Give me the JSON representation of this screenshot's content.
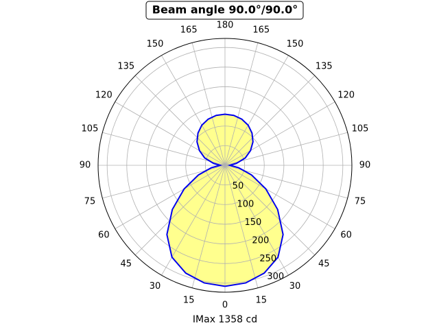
{
  "chart_data": {
    "type": "polar",
    "title": "Beam angle 90.0°/90.0°",
    "xlabel": "IMax 1358 cd",
    "theta_zero": "bottom",
    "x": [
      0,
      10,
      20,
      30,
      40,
      50,
      60,
      70,
      80,
      90,
      100,
      110,
      120,
      130,
      140,
      150,
      160,
      170,
      180,
      190,
      200,
      210,
      220,
      230,
      240,
      250,
      260,
      270,
      280,
      290,
      300,
      310,
      320,
      330,
      340,
      350,
      360
    ],
    "series": [
      {
        "color": "#0000ee",
        "fill": "#ffff88",
        "values": [
          308,
          304,
          292,
          270,
          230,
          175,
          120,
          72,
          35,
          12,
          30,
          55,
          75,
          93,
          107,
          118,
          125,
          129,
          130,
          129,
          125,
          118,
          107,
          93,
          75,
          55,
          30,
          12,
          35,
          72,
          120,
          175,
          230,
          270,
          292,
          304,
          308
        ]
      }
    ],
    "ylim": [
      0,
      323
    ],
    "yticks": [
      50,
      100,
      150,
      200,
      250,
      300
    ],
    "xticks": [
      0,
      15,
      30,
      45,
      60,
      75,
      90,
      105,
      120,
      135,
      150,
      165,
      180,
      {
        "value": 195,
        "label": "165"
      },
      {
        "value": 210,
        "label": "150"
      },
      {
        "value": 225,
        "label": "135"
      },
      {
        "value": 240,
        "label": "120"
      },
      {
        "value": 255,
        "label": "105"
      },
      {
        "value": 270,
        "label": "90"
      },
      {
        "value": 285,
        "label": "75"
      },
      {
        "value": 300,
        "label": "60"
      },
      {
        "value": 315,
        "label": "45"
      },
      {
        "value": 330,
        "label": "30"
      },
      {
        "value": 345,
        "label": "15"
      }
    ],
    "grid": true
  }
}
